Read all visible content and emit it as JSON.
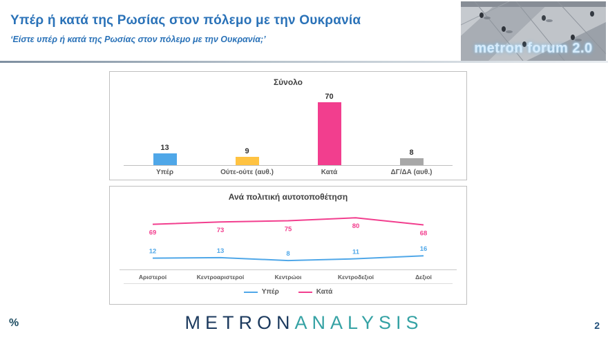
{
  "header": {
    "title": "Υπέρ ή κατά της Ρωσίας στον πόλεμο με την Ουκρανία",
    "subtitle": "‘Είστε υπέρ ή κατά της Ρωσίας στον πόλεμο με την Ουκρανία;’",
    "logo_text": "metron forum 2.0"
  },
  "footer": {
    "percent_label": "%",
    "logo_part1": "METRON",
    "logo_part2": "ANALYSIS",
    "page_number": "2"
  },
  "colors": {
    "title_blue": "#2A72B8",
    "bar_blue": "#4fa7e8",
    "bar_yellow": "#ffc342",
    "bar_pink": "#f23e8e",
    "bar_gray": "#a8a8a8",
    "axis_gray": "#bfbfbf",
    "label_gray": "#595959"
  },
  "chart_data": [
    {
      "type": "bar",
      "title": "Σύνολο",
      "categories": [
        "Υπέρ",
        "Ούτε-ούτε (αυθ.)",
        "Κατά",
        "ΔΓ/ΔΑ (αυθ.)"
      ],
      "values": [
        13,
        9,
        70,
        8
      ],
      "bar_colors": [
        "#4fa7e8",
        "#ffc342",
        "#f23e8e",
        "#a8a8a8"
      ],
      "ylim": [
        0,
        80
      ],
      "grid": false,
      "value_labels": "above-bars"
    },
    {
      "type": "line",
      "title": "Ανά πολιτική αυτοτοποθέτηση",
      "categories": [
        "Αριστεροί",
        "Κεντροαριστεροί",
        "Κεντρώοι",
        "Κεντροδεξιοί",
        "Δεξιοί"
      ],
      "series": [
        {
          "name": "Υπέρ",
          "values": [
            12,
            13,
            8,
            11,
            16
          ],
          "color": "#4fa7e8",
          "label_position": "above"
        },
        {
          "name": "Κατά",
          "values": [
            69,
            73,
            75,
            80,
            68
          ],
          "color": "#f23e8e",
          "label_position": "below"
        }
      ],
      "ylim": [
        0,
        100
      ],
      "grid": false,
      "legend_position": "bottom"
    }
  ]
}
